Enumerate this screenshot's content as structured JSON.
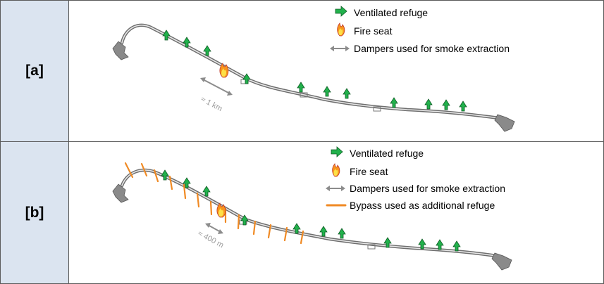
{
  "panels": [
    {
      "id": "a",
      "label": "[a]",
      "distance": "≈ 1 km",
      "legend": [
        {
          "key": "refuge",
          "text": "Ventilated refuge"
        },
        {
          "key": "fire",
          "text": "Fire seat"
        },
        {
          "key": "dampers",
          "text": "Dampers used for smoke extraction"
        }
      ]
    },
    {
      "id": "b",
      "label": "[b]",
      "distance": "≈ 400 m",
      "legend": [
        {
          "key": "refuge",
          "text": "Ventilated refuge"
        },
        {
          "key": "fire",
          "text": "Fire seat"
        },
        {
          "key": "dampers",
          "text": "Dampers used for smoke extraction"
        },
        {
          "key": "bypass",
          "text": "Bypass used as additional refuge"
        }
      ]
    }
  ],
  "colors": {
    "refuge_green": "#22b14c",
    "fire_orange": "#f7941d",
    "damper_gray": "#8c8c8c",
    "bypass_orange": "#f08a24",
    "label_bg": "#dbe4f0"
  },
  "icons": [
    "green-arrow-icon",
    "fire-icon",
    "double-arrow-icon",
    "bypass-line-icon"
  ]
}
